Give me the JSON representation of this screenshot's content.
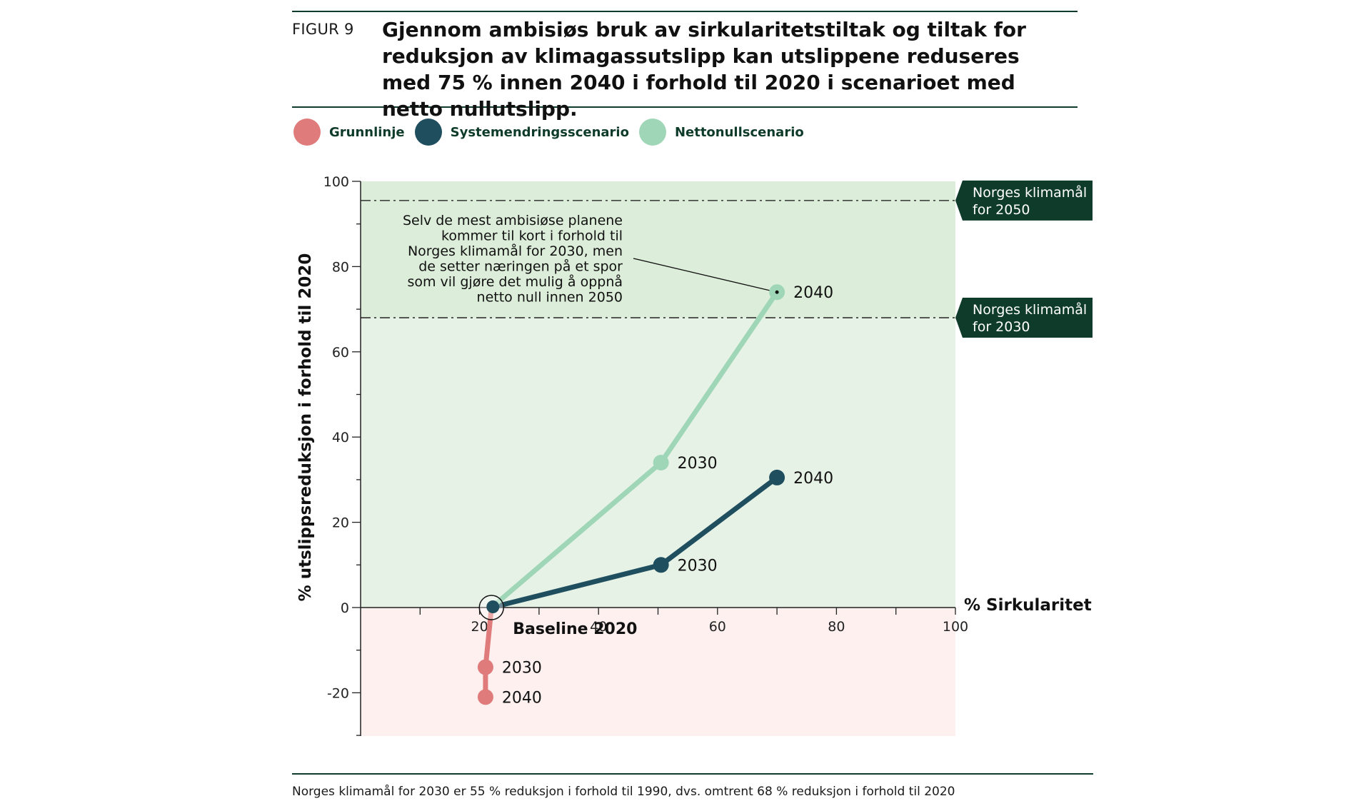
{
  "figure": {
    "label": "FIGUR 9",
    "title": "Gjennom ambisiøs bruk av sirkularitetstiltak og tiltak for reduksjon av klimagassutslipp kan utslippene reduseres med 75 % innen 2040 i forhold til 2020 i scenarioet med netto nullutslipp."
  },
  "legend": [
    {
      "label": "Grunnlinje",
      "color": "#e07b7b"
    },
    {
      "label": "Systemendringsscenario",
      "color": "#1f4e5f"
    },
    {
      "label": "Nettonullscenario",
      "color": "#9fd6b7"
    }
  ],
  "footer": "Norges klimamål for 2030 er 55 % reduksjon i forhold til 1990, dvs. omtrent 68 % reduksjon i forhold til 2020",
  "chart_data": {
    "type": "line",
    "xlabel": "% Sirkularitet",
    "ylabel": "% utslippsreduksjon i forhold til 2020",
    "xlim": [
      0,
      100
    ],
    "ylim": [
      -30,
      100
    ],
    "xticks": [
      20,
      40,
      60,
      80,
      100
    ],
    "yticks": [
      -20,
      0,
      20,
      40,
      60,
      80,
      100
    ],
    "colors": {
      "positive_band": "#e7f2e6",
      "target_band": "#dcedd9",
      "negative_band": "#fdf0ef",
      "target_label_bg": "#0e3b2a"
    },
    "baseline": {
      "label": "Baseline 2020",
      "x": 22,
      "y": 0
    },
    "series": [
      {
        "name": "Grunnlinje",
        "color": "#e07b7b",
        "points": [
          {
            "x": 22,
            "y": 0,
            "label": ""
          },
          {
            "x": 21,
            "y": -14,
            "label": "2030"
          },
          {
            "x": 21,
            "y": -21,
            "label": "2040"
          }
        ]
      },
      {
        "name": "Systemendringsscenario",
        "color": "#1f4e5f",
        "points": [
          {
            "x": 22,
            "y": 0,
            "label": ""
          },
          {
            "x": 50.5,
            "y": 10,
            "label": "2030"
          },
          {
            "x": 70,
            "y": 30.5,
            "label": "2040"
          }
        ]
      },
      {
        "name": "Nettonullscenario",
        "color": "#9fd6b7",
        "points": [
          {
            "x": 22,
            "y": 0,
            "label": ""
          },
          {
            "x": 50.5,
            "y": 34,
            "label": "2030"
          },
          {
            "x": 70,
            "y": 74,
            "label": "2040"
          }
        ]
      }
    ],
    "targets": [
      {
        "label_lines": [
          "Norges klimamål",
          "for 2050"
        ],
        "y": 95.5
      },
      {
        "label_lines": [
          "Norges klimamål",
          "for 2030"
        ],
        "y": 68
      }
    ],
    "annotation": {
      "lines": [
        "Selv de mest ambisiøse planene",
        "kommer til kort i forhold til",
        "Norges klimamål for 2030, men",
        "de setter næringen på et spor",
        "som vil gjøre det mulig å oppnå",
        "netto null innen 2050"
      ],
      "point": {
        "x": 70,
        "y": 74
      }
    }
  }
}
